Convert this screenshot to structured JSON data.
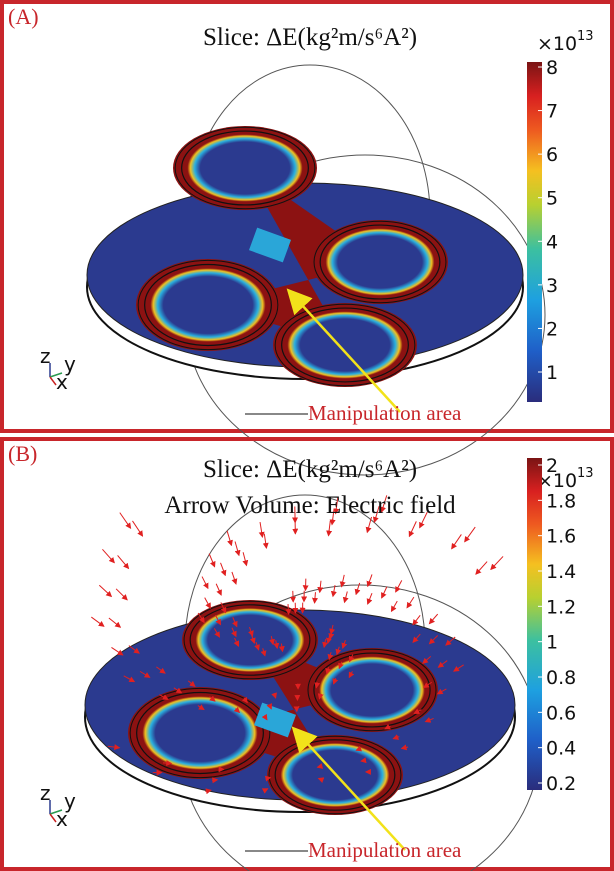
{
  "panels": [
    {
      "label": "(A)",
      "title_lines": [
        "Slice: ΔE(kg²m/s⁶A²)"
      ],
      "colorbar": {
        "multiplier": "×10",
        "exponent": "13",
        "ticks": [
          8,
          7,
          6,
          5,
          4,
          3,
          2,
          1
        ]
      },
      "annotation": "Manipulation area",
      "axes": [
        "z",
        "y",
        "x"
      ]
    },
    {
      "label": "(B)",
      "title_lines": [
        "Slice: ΔE(kg²m/s⁶A²)",
        "Arrow Volume: Electric field"
      ],
      "colorbar": {
        "multiplier": "×10",
        "exponent": "13",
        "ticks": [
          2,
          1.8,
          1.6,
          1.4,
          1.2,
          1,
          0.8,
          0.6,
          0.4,
          0.2
        ]
      },
      "annotation": "Manipulation area",
      "axes": [
        "z",
        "y",
        "x"
      ]
    }
  ]
}
